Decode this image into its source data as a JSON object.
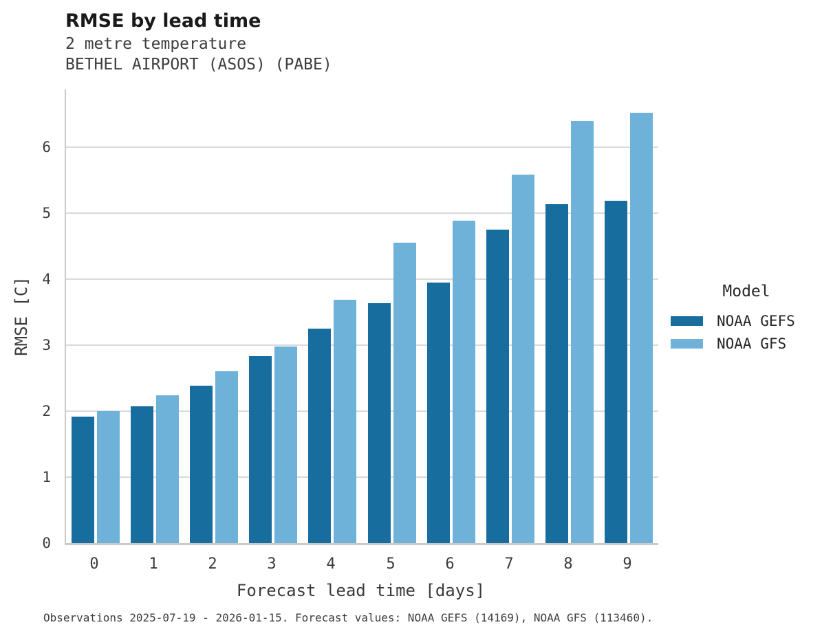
{
  "header": {
    "title": "RMSE by lead time",
    "subtitle_line1": "2 metre temperature",
    "subtitle_line2": "BETHEL AIRPORT (ASOS) (PABE)"
  },
  "footer": {
    "text": "Observations 2025-07-19 - 2026-01-15. Forecast values: NOAA GEFS (14169), NOAA GFS (113460)."
  },
  "chart_data": {
    "type": "bar",
    "title": "RMSE by lead time",
    "subtitle": [
      "2 metre temperature",
      "BETHEL AIRPORT (ASOS) (PABE)"
    ],
    "categories": [
      "0",
      "1",
      "2",
      "3",
      "4",
      "5",
      "6",
      "7",
      "8",
      "9"
    ],
    "series": [
      {
        "name": "NOAA GEFS",
        "color": "#176d9e",
        "values": [
          1.92,
          2.07,
          2.38,
          2.83,
          3.25,
          3.63,
          3.95,
          4.75,
          5.13,
          5.18
        ]
      },
      {
        "name": "NOAA GFS",
        "color": "#6fb2d9",
        "values": [
          2.0,
          2.24,
          2.6,
          2.98,
          3.68,
          4.55,
          4.88,
          5.58,
          6.39,
          6.52
        ]
      }
    ],
    "xlabel": "Forecast lead time [days]",
    "ylabel": "RMSE [C]",
    "ylim": [
      0,
      6.87
    ],
    "yticks": [
      0,
      1,
      2,
      3,
      4,
      5,
      6
    ],
    "grid": "horizontal gridlines on",
    "legend_title": "Model",
    "legend_position": "right"
  }
}
